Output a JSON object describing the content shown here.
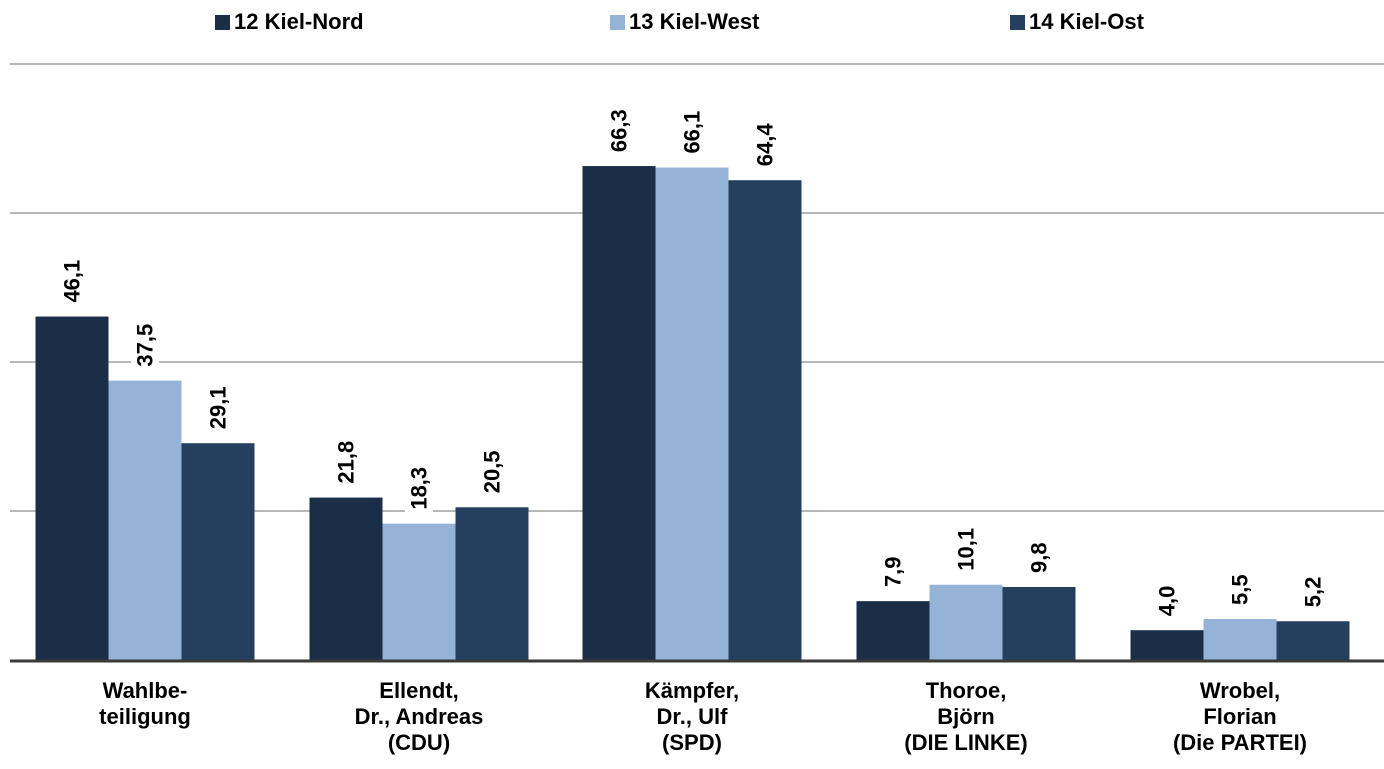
{
  "chart_data": {
    "type": "bar",
    "categories": [
      [
        "Wahlbe-",
        "teiligung"
      ],
      [
        "Ellendt,",
        "Dr., Andreas",
        "(CDU)"
      ],
      [
        "Kämpfer,",
        "Dr., Ulf",
        "(SPD)"
      ],
      [
        "Thoroe,",
        "Björn",
        "(DIE LINKE)"
      ],
      [
        "Wrobel,",
        "Florian",
        "(Die PARTEI)"
      ]
    ],
    "series": [
      {
        "name": "12 Kiel-Nord",
        "color": "#1a2e48",
        "values": [
          46.1,
          21.8,
          66.3,
          7.9,
          4.0
        ],
        "labels": [
          "46,1",
          "21,8",
          "66,3",
          "7,9",
          "4,0"
        ]
      },
      {
        "name": "13 Kiel-West",
        "color": "#95b3d7",
        "values": [
          37.5,
          18.3,
          66.1,
          10.1,
          5.5
        ],
        "labels": [
          "37,5",
          "18,3",
          "66,1",
          "10,1",
          "5,5"
        ]
      },
      {
        "name": "14 Kiel-Ost",
        "color": "#253f5f",
        "values": [
          29.1,
          20.5,
          64.4,
          9.8,
          5.2
        ],
        "labels": [
          "29,1",
          "20,5",
          "64,4",
          "9,8",
          "5,2"
        ]
      }
    ],
    "ylim": [
      0,
      80
    ],
    "y_gridlines": [
      20,
      40,
      60,
      80
    ],
    "grid": true,
    "legend_position": "top",
    "xlabel": "",
    "ylabel": ""
  }
}
